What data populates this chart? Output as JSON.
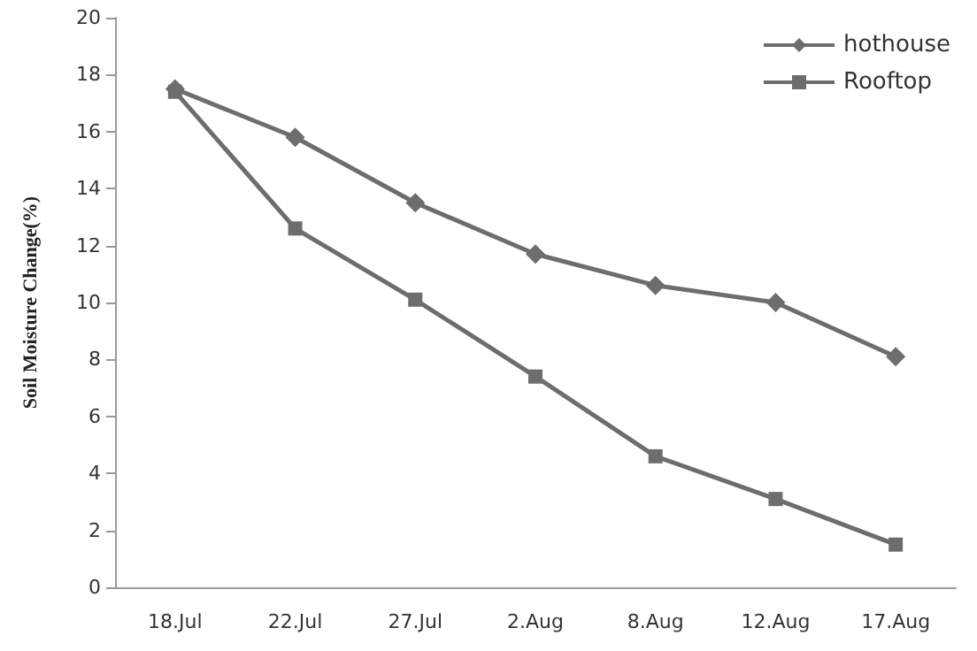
{
  "chart_data": {
    "type": "line",
    "ylabel": "Soil Moisture Change(%)",
    "categories": [
      "18.Jul",
      "22.Jul",
      "27.Jul",
      "2.Aug",
      "8.Aug",
      "12.Aug",
      "17.Aug"
    ],
    "series": [
      {
        "name": "hothouse",
        "color": "#6d6d6d",
        "marker": "diamond",
        "values": [
          17.5,
          15.8,
          13.5,
          11.7,
          10.6,
          10.0,
          8.1
        ]
      },
      {
        "name": "Rooftop",
        "color": "#6d6d6d",
        "marker": "square",
        "values": [
          17.4,
          12.6,
          10.1,
          7.4,
          4.6,
          3.1,
          1.5
        ]
      }
    ],
    "ylim": [
      0,
      20
    ],
    "yticks": [
      0,
      2,
      4,
      6,
      8,
      10,
      12,
      14,
      16,
      18,
      20
    ],
    "grid": false,
    "legend": "top right",
    "line_style": "solid"
  }
}
